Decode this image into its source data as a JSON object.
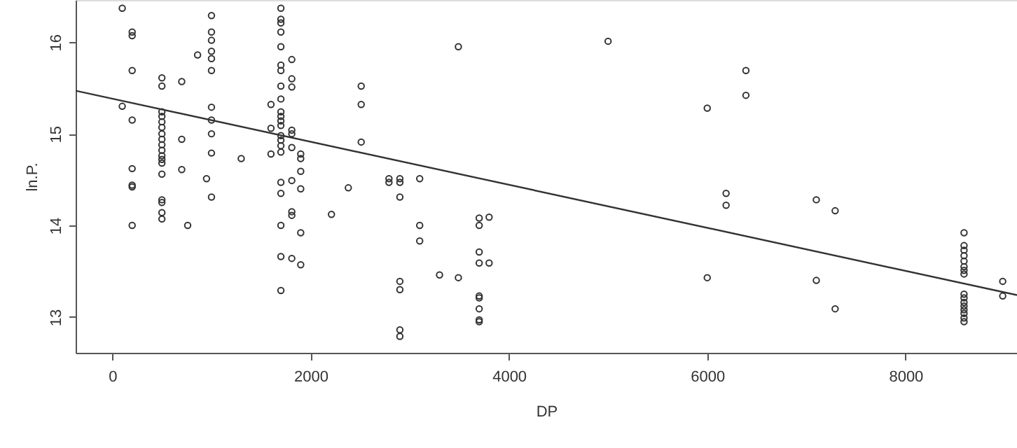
{
  "chart_data": {
    "type": "scatter",
    "xlabel": "DP",
    "ylabel": "ln.P.",
    "xlim": [
      -370,
      9124
    ],
    "ylim": [
      12.61,
      16.46
    ],
    "xticks": [
      0,
      2000,
      4000,
      6000,
      8000
    ],
    "yticks": [
      13,
      14,
      15,
      16
    ],
    "grid": false,
    "marker": "circle",
    "series": [
      {
        "type": "scatter",
        "color": "#333333",
        "x": [
          100,
          100,
          200,
          200,
          200,
          200,
          200,
          200,
          200,
          200,
          500,
          500,
          500,
          500,
          500,
          500,
          500,
          500,
          500,
          500,
          500,
          500,
          500,
          500,
          500,
          500,
          500,
          500,
          700,
          700,
          700,
          760,
          860,
          950,
          1000,
          1000,
          1000,
          1000,
          1000,
          1000,
          1000,
          1000,
          1000,
          1000,
          1000,
          1300,
          1600,
          1600,
          1600,
          1700,
          1700,
          1700,
          1700,
          1700,
          1700,
          1700,
          1700,
          1700,
          1700,
          1700,
          1700,
          1700,
          1700,
          1700,
          1700,
          1700,
          1700,
          1700,
          1700,
          1700,
          1700,
          1810,
          1810,
          1810,
          1810,
          1810,
          1810,
          1810,
          1810,
          1810,
          1810,
          1900,
          1900,
          1900,
          1900,
          1900,
          1900,
          2210,
          2380,
          2510,
          2510,
          2510,
          2790,
          2790,
          2900,
          2900,
          2900,
          2900,
          2900,
          2900,
          2900,
          3100,
          3100,
          3100,
          3300,
          3490,
          3490,
          3700,
          3700,
          3700,
          3700,
          3700,
          3700,
          3700,
          3700,
          3700,
          3800,
          3800,
          5000,
          6000,
          6000,
          6190,
          6190,
          6390,
          6390,
          7100,
          7100,
          7290,
          7290,
          8590,
          8590,
          8590,
          8590,
          8590,
          8590,
          8590,
          8590,
          8590,
          8590,
          8590,
          8590,
          8590,
          8590,
          8590,
          8590,
          8980,
          8980
        ],
        "values": [
          16.37,
          15.3,
          16.11,
          16.07,
          15.69,
          15.15,
          14.62,
          14.44,
          14.42,
          14.0,
          15.61,
          15.52,
          15.24,
          15.19,
          15.13,
          15.07,
          15.0,
          14.94,
          14.88,
          14.82,
          14.76,
          14.72,
          14.68,
          14.56,
          14.28,
          14.25,
          14.14,
          14.07,
          15.57,
          14.94,
          14.61,
          14.0,
          15.86,
          14.51,
          16.29,
          16.11,
          16.02,
          15.9,
          15.82,
          15.69,
          15.29,
          15.15,
          15.0,
          14.79,
          14.31,
          14.73,
          15.32,
          15.06,
          14.78,
          16.37,
          16.25,
          16.21,
          16.11,
          15.95,
          15.75,
          15.69,
          15.52,
          15.38,
          15.24,
          15.19,
          15.14,
          15.09,
          14.98,
          14.93,
          14.87,
          14.8,
          14.47,
          14.35,
          14.0,
          13.66,
          13.29,
          15.81,
          15.6,
          15.51,
          15.04,
          15.0,
          14.85,
          14.49,
          14.15,
          14.11,
          13.64,
          14.78,
          14.73,
          14.59,
          14.4,
          13.92,
          13.57,
          14.12,
          14.41,
          15.52,
          15.32,
          14.91,
          14.51,
          14.47,
          14.51,
          14.47,
          14.31,
          13.39,
          13.3,
          12.86,
          12.79,
          14.51,
          14.0,
          13.83,
          13.46,
          15.95,
          13.43,
          14.08,
          14.0,
          13.71,
          13.59,
          13.23,
          13.21,
          13.09,
          12.97,
          12.95,
          14.09,
          13.59,
          16.01,
          15.28,
          13.43,
          14.35,
          14.22,
          15.69,
          15.42,
          14.28,
          13.4,
          14.16,
          13.09,
          13.92,
          13.78,
          13.73,
          13.67,
          13.61,
          13.55,
          13.51,
          13.47,
          13.25,
          13.21,
          13.16,
          13.12,
          13.08,
          13.04,
          12.99,
          12.95,
          13.39,
          13.23
        ]
      },
      {
        "type": "line",
        "marker": "none",
        "line_style": "solid",
        "color": "#333333",
        "x": [
          -370,
          9124
        ],
        "values": [
          15.47,
          13.24
        ]
      }
    ]
  }
}
